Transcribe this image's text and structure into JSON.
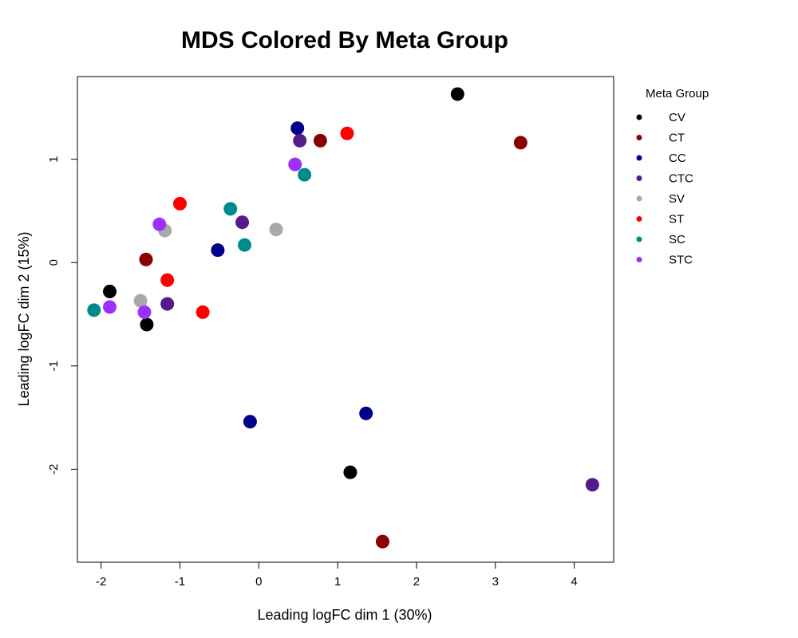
{
  "chart_data": {
    "type": "scatter",
    "title": "MDS Colored By Meta Group",
    "xlabel": "Leading logFC dim 1 (30%)",
    "ylabel": "Leading logFC dim 2 (15%)",
    "xlim": [
      -2.3,
      4.5
    ],
    "ylim": [
      -2.9,
      1.8
    ],
    "xticks": [
      -2,
      -1,
      0,
      1,
      2,
      3,
      4
    ],
    "yticks": [
      -2,
      -1,
      0,
      1
    ],
    "grid": false,
    "legend_title": "Meta Group",
    "legend_position": "right-outside-top",
    "series": [
      {
        "name": "CV",
        "color": "#000000",
        "points": [
          {
            "x": 2.52,
            "y": 1.63
          },
          {
            "x": -1.89,
            "y": -0.28
          },
          {
            "x": -1.42,
            "y": -0.6
          },
          {
            "x": 1.16,
            "y": -2.03
          }
        ]
      },
      {
        "name": "CT",
        "color": "#8B0000",
        "points": [
          {
            "x": 3.32,
            "y": 1.16
          },
          {
            "x": 0.78,
            "y": 1.18
          },
          {
            "x": -1.43,
            "y": 0.03
          },
          {
            "x": 1.57,
            "y": -2.7
          }
        ]
      },
      {
        "name": "CC",
        "color": "#00008B",
        "points": [
          {
            "x": 0.49,
            "y": 1.3
          },
          {
            "x": -0.52,
            "y": 0.12
          },
          {
            "x": 1.36,
            "y": -1.46
          },
          {
            "x": -0.11,
            "y": -1.54
          }
        ]
      },
      {
        "name": "CTC",
        "color": "#551A8B",
        "points": [
          {
            "x": 0.52,
            "y": 1.18
          },
          {
            "x": -0.21,
            "y": 0.39
          },
          {
            "x": -1.16,
            "y": -0.4
          },
          {
            "x": 4.23,
            "y": -2.15
          }
        ]
      },
      {
        "name": "SV",
        "color": "#A9A9A9",
        "points": [
          {
            "x": 0.22,
            "y": 0.32
          },
          {
            "x": -1.19,
            "y": 0.31
          },
          {
            "x": -1.5,
            "y": -0.37
          }
        ]
      },
      {
        "name": "ST",
        "color": "#FF0000",
        "points": [
          {
            "x": 1.12,
            "y": 1.25
          },
          {
            "x": -1.0,
            "y": 0.57
          },
          {
            "x": -1.16,
            "y": -0.17
          },
          {
            "x": -0.71,
            "y": -0.48
          }
        ]
      },
      {
        "name": "SC",
        "color": "#008B8B",
        "points": [
          {
            "x": 0.58,
            "y": 0.85
          },
          {
            "x": -0.36,
            "y": 0.52
          },
          {
            "x": -0.18,
            "y": 0.17
          },
          {
            "x": -2.09,
            "y": -0.46
          }
        ]
      },
      {
        "name": "STC",
        "color": "#9B30FF",
        "points": [
          {
            "x": 0.46,
            "y": 0.95
          },
          {
            "x": -1.26,
            "y": 0.37
          },
          {
            "x": -1.89,
            "y": -0.43
          },
          {
            "x": -1.45,
            "y": -0.48
          }
        ]
      }
    ]
  }
}
